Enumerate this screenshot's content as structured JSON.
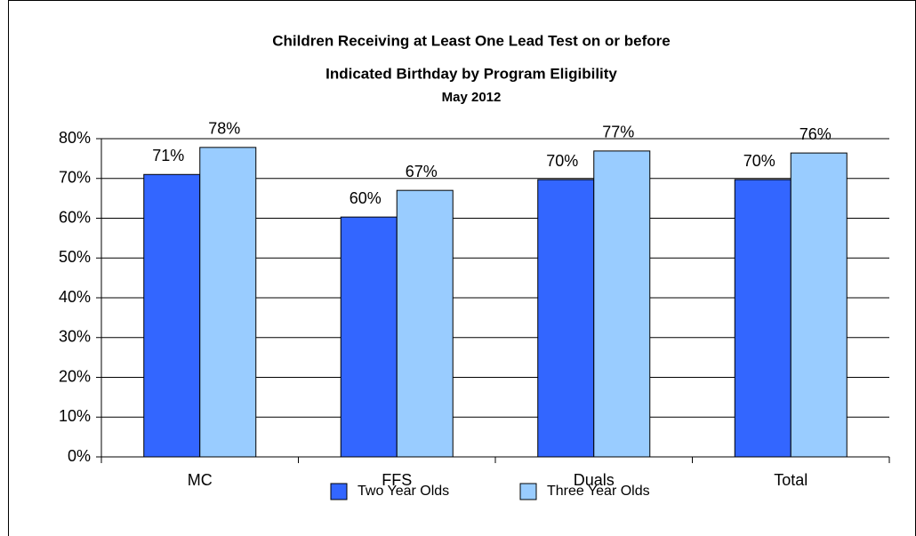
{
  "chart_data": {
    "type": "bar",
    "title": [
      "Children Receiving at Least One Lead Test on or before",
      "Indicated Birthday by Program Eligibility"
    ],
    "subtitle": "May  2012",
    "categories": [
      "MC",
      "FFS",
      "Duals",
      "Total"
    ],
    "series": [
      {
        "name": "Two Year Olds",
        "color": "#3366ff",
        "values": [
          71,
          60.3,
          69.7,
          69.7
        ],
        "value_labels": [
          "71%",
          "60%",
          "70%",
          "70%"
        ]
      },
      {
        "name": "Three Year Olds",
        "color": "#99ccff",
        "values": [
          77.8,
          67,
          76.9,
          76.4
        ],
        "value_labels": [
          "78%",
          "67%",
          "77%",
          "76%"
        ]
      }
    ],
    "ylim": [
      0,
      80
    ],
    "yticks": [
      {
        "value": 0,
        "label": "0%"
      },
      {
        "value": 10,
        "label": "10%"
      },
      {
        "value": 20,
        "label": "20%"
      },
      {
        "value": 30,
        "label": "30%"
      },
      {
        "value": 40,
        "label": "40%"
      },
      {
        "value": 50,
        "label": "50%"
      },
      {
        "value": 60,
        "label": "60%"
      },
      {
        "value": 70,
        "label": "70%"
      },
      {
        "value": 80,
        "label": "80%"
      }
    ],
    "grid": true,
    "legend": "bottom"
  }
}
